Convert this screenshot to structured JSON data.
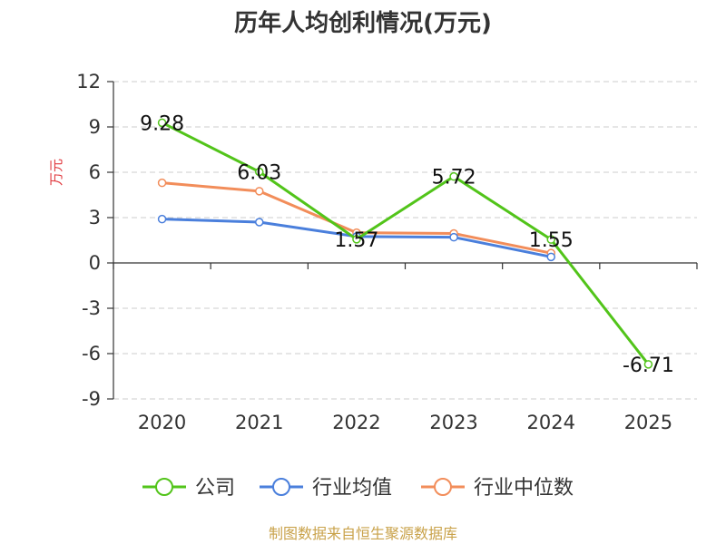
{
  "chart_data": {
    "type": "line",
    "title": "历年人均创利情况(万元)",
    "ylabel": "万元",
    "xlabel": "",
    "categories": [
      "2020",
      "2021",
      "2022",
      "2023",
      "2024",
      "2025"
    ],
    "ylim": [
      -9,
      12
    ],
    "yticks": [
      12,
      9,
      6,
      3,
      0,
      -3,
      -6,
      -9
    ],
    "grid": true,
    "legend_position": "bottom",
    "series": [
      {
        "name": "公司",
        "color": "#52c41a",
        "values": [
          9.28,
          6.03,
          1.57,
          5.72,
          1.55,
          -6.71
        ],
        "labels": [
          "9.28",
          "6.03",
          "1.57",
          "5.72",
          "1.55",
          "-6.71"
        ]
      },
      {
        "name": "行业均值",
        "color": "#4a7fdc",
        "values": [
          2.9,
          2.7,
          1.75,
          1.7,
          0.4,
          null
        ]
      },
      {
        "name": "行业中位数",
        "color": "#f28d5a",
        "values": [
          5.3,
          4.75,
          2.0,
          1.95,
          0.65,
          null
        ]
      }
    ]
  },
  "source": "制图数据来自恒生聚源数据库",
  "colors": {
    "title": "#333333",
    "ylabel": "#e0393e",
    "source": "#c9a24a",
    "grid": "#cccccc"
  }
}
